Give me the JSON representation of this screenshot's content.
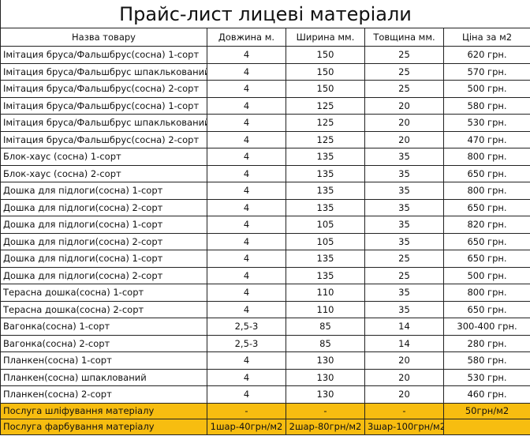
{
  "title": "Прайс-лист лицеві матеріали",
  "headers": [
    "Назва товару",
    "Довжина м.",
    "Ширина мм.",
    "Товщина мм.",
    "Ціна за м2"
  ],
  "rows": [
    [
      "Імітация бруса/Фальшбрус(сосна) 1-сорт",
      "4",
      "150",
      "25",
      "620 грн."
    ],
    [
      "Імітация бруса/Фальшбрус шпаклькований",
      "4",
      "150",
      "25",
      "570 грн."
    ],
    [
      "Імітация бруса/Фальшбрус(сосна) 2-сорт",
      "4",
      "150",
      "25",
      "500 грн."
    ],
    [
      "Імітация бруса/Фальшбрус(сосна) 1-сорт",
      "4",
      "125",
      "20",
      "580 грн."
    ],
    [
      "Імітация бруса/Фальшбрус шпаклькований",
      "4",
      "125",
      "20",
      "530 грн."
    ],
    [
      "Імітация бруса/Фальшбрус(сосна) 2-сорт",
      "4",
      "125",
      "20",
      "470 грн."
    ],
    [
      "Блок-хаус (сосна) 1-сорт",
      "4",
      "135",
      "35",
      "800 грн."
    ],
    [
      "Блок-хаус (сосна) 2-сорт",
      "4",
      "135",
      "35",
      "650 грн."
    ],
    [
      "Дошка для підлоги(сосна) 1-сорт",
      "4",
      "135",
      "35",
      "800 грн."
    ],
    [
      "Дошка для підлоги(сосна) 2-сорт",
      "4",
      "135",
      "35",
      "650 грн."
    ],
    [
      "Дошка для підлоги(сосна) 1-сорт",
      "4",
      "105",
      "35",
      "820 грн."
    ],
    [
      "Дошка для підлоги(сосна) 2-сорт",
      "4",
      "105",
      "35",
      "650 грн."
    ],
    [
      "Дошка для підлоги(сосна) 1-сорт",
      "4",
      "135",
      "25",
      "650 грн."
    ],
    [
      "Дошка для підлоги(сосна) 2-сорт",
      "4",
      "135",
      "25",
      "500 грн."
    ],
    [
      "Терасна дошка(сосна) 1-сорт",
      "4",
      "110",
      "35",
      "800 грн."
    ],
    [
      "Терасна дошка(сосна) 2-сорт",
      "4",
      "110",
      "35",
      "650 грн."
    ],
    [
      "Вагонка(сосна) 1-сорт",
      "2,5-3",
      "85",
      "14",
      "300-400 грн."
    ],
    [
      "Вагонка(сосна) 2-сорт",
      "2,5-3",
      "85",
      "14",
      "280 грн."
    ],
    [
      "Планкен(сосна) 1-сорт",
      "4",
      "130",
      "20",
      "580 грн."
    ],
    [
      "Планкен(сосна) шпаклований",
      "4",
      "130",
      "20",
      "530 грн."
    ],
    [
      "Планкен(сосна) 2-сорт",
      "4",
      "130",
      "20",
      "460 грн."
    ]
  ],
  "services": [
    [
      "Послуга шліфування матеріалу",
      "-",
      "-",
      "-",
      "50грн/м2"
    ],
    [
      "Послуга фарбування матеріалу",
      "1шар-40грн/м2",
      "2шар-80грн/м2",
      "3шар-100грн/м2",
      ""
    ]
  ],
  "colors": {
    "service_highlight": "#f7bd10"
  }
}
